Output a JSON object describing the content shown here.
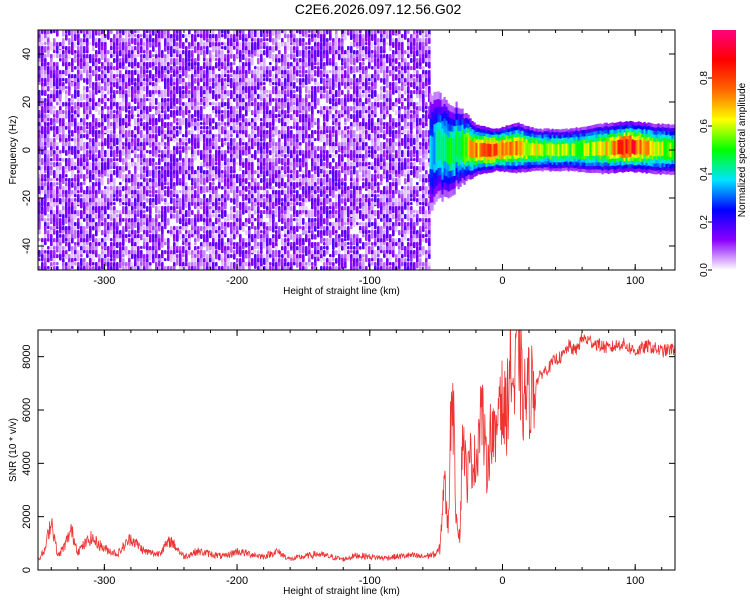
{
  "title": "C2E6.2026.097.12.56.G02",
  "chart_data": [
    {
      "type": "heatmap",
      "xlabel": "Height of straight line (km)",
      "ylabel": "Frequency (Hz)",
      "xlim": [
        -350,
        130
      ],
      "ylim": [
        -50,
        50
      ],
      "xticks": [
        -300,
        -200,
        -100,
        0,
        100
      ],
      "yticks": [
        -40,
        -20,
        0,
        20,
        40
      ],
      "colorbar": {
        "label": "Normalized spectral amplitude",
        "range": [
          0,
          1
        ],
        "ticks": [
          "0.0",
          "0.2",
          "0.4",
          "0.6",
          "0.8"
        ],
        "tick_values": [
          0.0,
          0.2,
          0.4,
          0.6,
          0.8
        ],
        "colors": [
          "#ffffff",
          "#8a00ff",
          "#0000ff",
          "#00e5ff",
          "#00ff00",
          "#ffff00",
          "#ff6600",
          "#ff0000",
          "#ff0080"
        ]
      },
      "noise_region": {
        "x_from": -350,
        "x_to": -55,
        "freq_range": [
          -50,
          50
        ],
        "typical_amplitude": 0.1
      },
      "signal_band": [
        {
          "x": -55,
          "freq_center": 0,
          "half_width": 7,
          "amplitude": 0.35
        },
        {
          "x": -45,
          "freq_center": 1,
          "half_width": 6,
          "amplitude": 0.45
        },
        {
          "x": -35,
          "freq_center": 1,
          "half_width": 5,
          "amplitude": 0.5
        },
        {
          "x": -20,
          "freq_center": 0,
          "half_width": 3,
          "amplitude": 0.7
        },
        {
          "x": -5,
          "freq_center": 0,
          "half_width": 2.5,
          "amplitude": 0.8
        },
        {
          "x": 10,
          "freq_center": 1,
          "half_width": 3,
          "amplitude": 0.7
        },
        {
          "x": 25,
          "freq_center": 0,
          "half_width": 2.5,
          "amplitude": 0.6
        },
        {
          "x": 50,
          "freq_center": 0,
          "half_width": 2.5,
          "amplitude": 0.55
        },
        {
          "x": 75,
          "freq_center": 0.5,
          "half_width": 3,
          "amplitude": 0.6
        },
        {
          "x": 95,
          "freq_center": 1.5,
          "half_width": 3,
          "amplitude": 0.85
        },
        {
          "x": 115,
          "freq_center": 0.5,
          "half_width": 3,
          "amplitude": 0.6
        },
        {
          "x": 130,
          "freq_center": 0,
          "half_width": 3,
          "amplitude": 0.55
        }
      ]
    },
    {
      "type": "line",
      "xlabel": "Height of straight line (km)",
      "ylabel": "SNR (10 * v/v)",
      "xlim": [
        -350,
        130
      ],
      "ylim": [
        0,
        9000
      ],
      "xticks": [
        -300,
        -200,
        -100,
        0,
        100
      ],
      "yticks": [
        0,
        2000,
        4000,
        6000,
        8000
      ],
      "color": "#ee3333",
      "series": [
        {
          "x": [
            -350,
            -345,
            -340,
            -335,
            -330,
            -325,
            -320,
            -310,
            -300,
            -290,
            -280,
            -270,
            -260,
            -250,
            -240,
            -230,
            -220,
            -210,
            -200,
            -190,
            -180,
            -170,
            -160,
            -150,
            -140,
            -130,
            -120,
            -110,
            -100,
            -90,
            -80,
            -70,
            -60,
            -50,
            -47,
            -44,
            -41,
            -38,
            -35,
            -32,
            -30,
            -27,
            -24,
            -20,
            -16,
            -12,
            -8,
            -5,
            -2,
            0,
            3,
            6,
            9,
            12,
            15,
            20,
            25,
            30,
            35,
            40,
            45,
            50,
            55,
            60,
            70,
            80,
            90,
            100,
            110,
            120,
            130
          ],
          "y": [
            400,
            700,
            1900,
            500,
            900,
            1500,
            700,
            1200,
            800,
            600,
            1200,
            700,
            600,
            1100,
            500,
            700,
            600,
            500,
            700,
            600,
            500,
            700,
            400,
            500,
            600,
            500,
            400,
            550,
            500,
            450,
            500,
            550,
            500,
            600,
            800,
            3500,
            1500,
            7500,
            2200,
            1200,
            5500,
            3300,
            4200,
            4000,
            6300,
            3800,
            5500,
            4500,
            7300,
            6000,
            5800,
            8000,
            6500,
            9000,
            6300,
            6700,
            7000,
            7400,
            7600,
            7900,
            8000,
            8400,
            8200,
            8700,
            8500,
            8300,
            8500,
            8200,
            8400,
            8200,
            8300
          ]
        }
      ]
    }
  ]
}
